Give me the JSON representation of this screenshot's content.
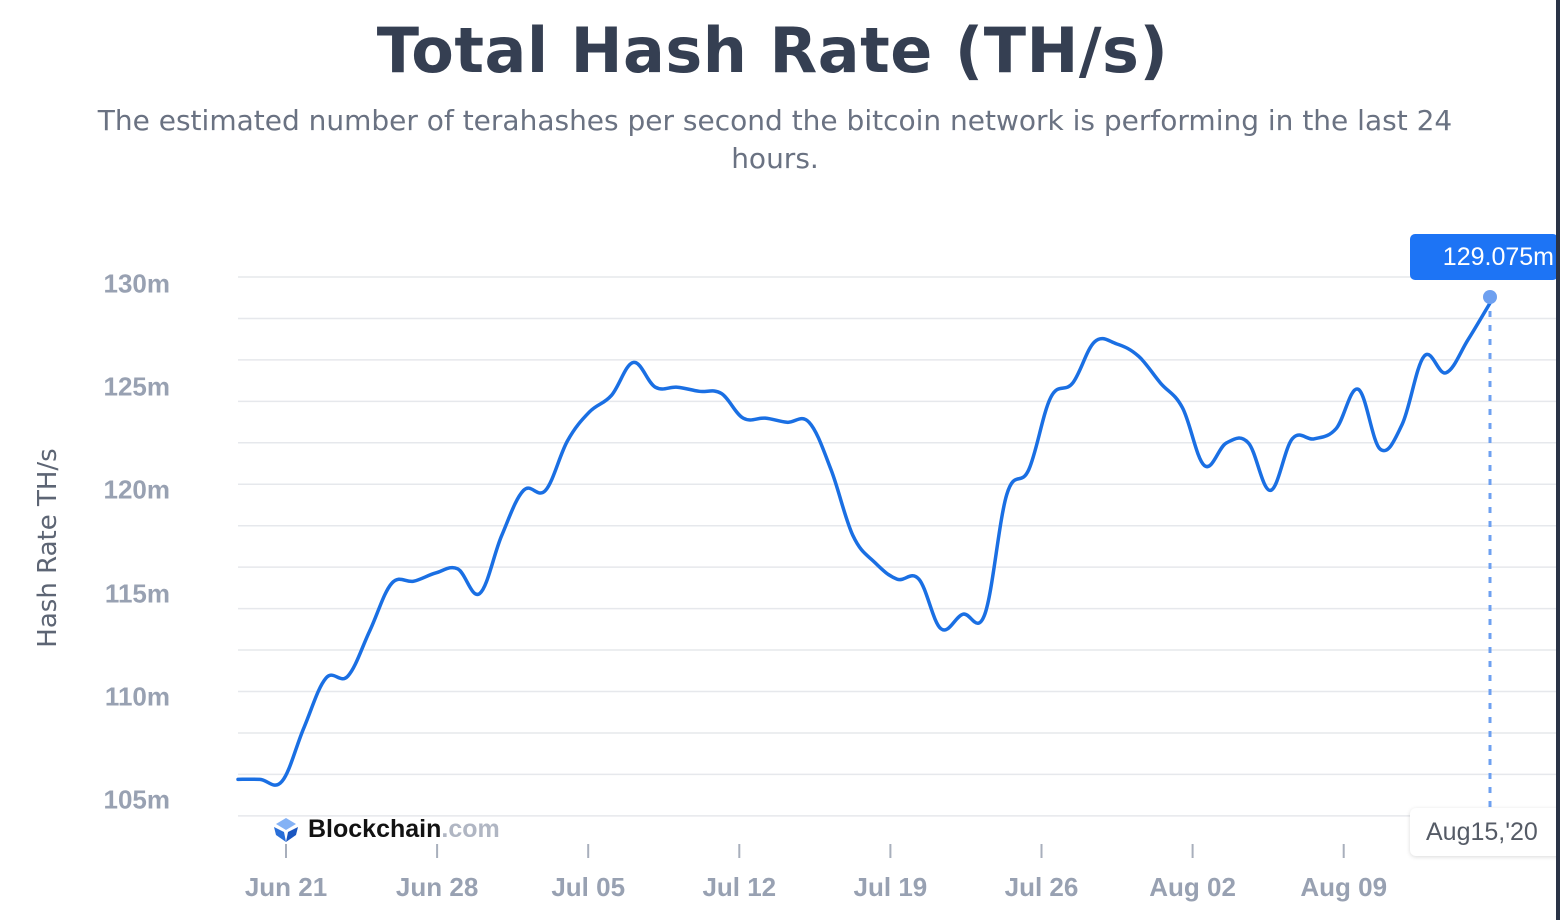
{
  "header": {
    "title": "Total Hash Rate (TH/s)",
    "subtitle": "The estimated number of terahashes per second the bitcoin network is performing in the last 24 hours."
  },
  "tooltip": {
    "value": "129.075m",
    "date": "Aug15,'20"
  },
  "branding": {
    "name": "Blockchain",
    "tld": ".com"
  },
  "colors": {
    "line": "#1a6fe3",
    "tooltip_bg": "#1d74f5",
    "marker": "#6ea0f0",
    "grid": "#e6e8ec"
  },
  "chart_data": {
    "type": "line",
    "title": "Total Hash Rate (TH/s)",
    "subtitle": "The estimated number of terahashes per second the bitcoin network is performing in the last 24 hours.",
    "xlabel": "",
    "ylabel": "Hash Rate TH/s",
    "yticks": [
      "105m",
      "110m",
      "115m",
      "120m",
      "125m",
      "130m"
    ],
    "xticks": [
      "Jun 21",
      "Jun 28",
      "Jul 05",
      "Jul 12",
      "Jul 19",
      "Jul 26",
      "Aug 02",
      "Aug 09"
    ],
    "ylim": [
      104,
      131
    ],
    "grid": true,
    "legend": "none",
    "series": [
      {
        "name": "Hash Rate TH/s",
        "x": [
          "Jun 19",
          "Jun 20",
          "Jun 21",
          "Jun 22",
          "Jun 23",
          "Jun 24",
          "Jun 25",
          "Jun 26",
          "Jun 27",
          "Jun 28",
          "Jun 29",
          "Jun 30",
          "Jul 01",
          "Jul 02",
          "Jul 03",
          "Jul 04",
          "Jul 05",
          "Jul 06",
          "Jul 07",
          "Jul 08",
          "Jul 09",
          "Jul 10",
          "Jul 11",
          "Jul 12",
          "Jul 13",
          "Jul 14",
          "Jul 15",
          "Jul 16",
          "Jul 17",
          "Jul 18",
          "Jul 19",
          "Jul 20",
          "Jul 21",
          "Jul 22",
          "Jul 23",
          "Jul 24",
          "Jul 25",
          "Jul 26",
          "Jul 27",
          "Jul 28",
          "Jul 29",
          "Jul 30",
          "Jul 31",
          "Aug 01",
          "Aug 02",
          "Aug 03",
          "Aug 04",
          "Aug 05",
          "Aug 06",
          "Aug 07",
          "Aug 08",
          "Aug 09",
          "Aug 10",
          "Aug 11",
          "Aug 12",
          "Aug 13",
          "Aug 14",
          "Aug 15"
        ],
        "values": [
          106.0,
          106.0,
          105.9,
          108.5,
          110.9,
          111.0,
          113.2,
          115.5,
          115.6,
          116.0,
          116.2,
          115.0,
          117.8,
          120.0,
          120.0,
          122.4,
          123.8,
          124.6,
          126.2,
          125.0,
          125.0,
          124.8,
          124.7,
          123.5,
          123.5,
          123.3,
          123.3,
          121.0,
          117.8,
          116.5,
          115.7,
          115.7,
          113.3,
          114.0,
          114.0,
          119.8,
          121.0,
          124.5,
          125.2,
          127.2,
          127.1,
          126.5,
          125.2,
          124.0,
          121.2,
          122.3,
          122.3,
          120.0,
          122.5,
          122.5,
          123.0,
          124.9,
          122.0,
          123.2,
          126.5,
          125.7,
          127.3,
          129.075
        ]
      }
    ]
  }
}
